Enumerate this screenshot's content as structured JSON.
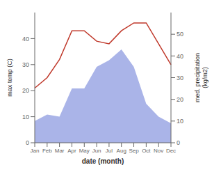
{
  "chart_data": {
    "type": "line",
    "xlabel": "date (month)",
    "ylabel": "max temp (C)",
    "y2label": "med. precipitation\n(kg/m2)",
    "categories": [
      "Jan",
      "Feb",
      "Mar",
      "Apr",
      "May",
      "Jun",
      "Jul",
      "Aug",
      "Sep",
      "Oct",
      "Nov",
      "Dec"
    ],
    "series": [
      {
        "type": "area",
        "axis": "y2",
        "color": "#aab4e8",
        "values": [
          10,
          13,
          12,
          25,
          25,
          35,
          38,
          43,
          35,
          18,
          12,
          9
        ]
      },
      {
        "type": "line",
        "color": "#c0392b",
        "values": [
          21,
          25,
          32,
          43,
          43,
          39,
          38,
          43,
          46,
          46,
          38,
          30
        ]
      }
    ],
    "ylim": [
      0,
      50
    ],
    "yticks": [
      0,
      10,
      20,
      30,
      40
    ],
    "y2lim": [
      0,
      60
    ],
    "y2ticks": [
      0,
      10,
      20,
      30,
      40,
      50
    ]
  }
}
